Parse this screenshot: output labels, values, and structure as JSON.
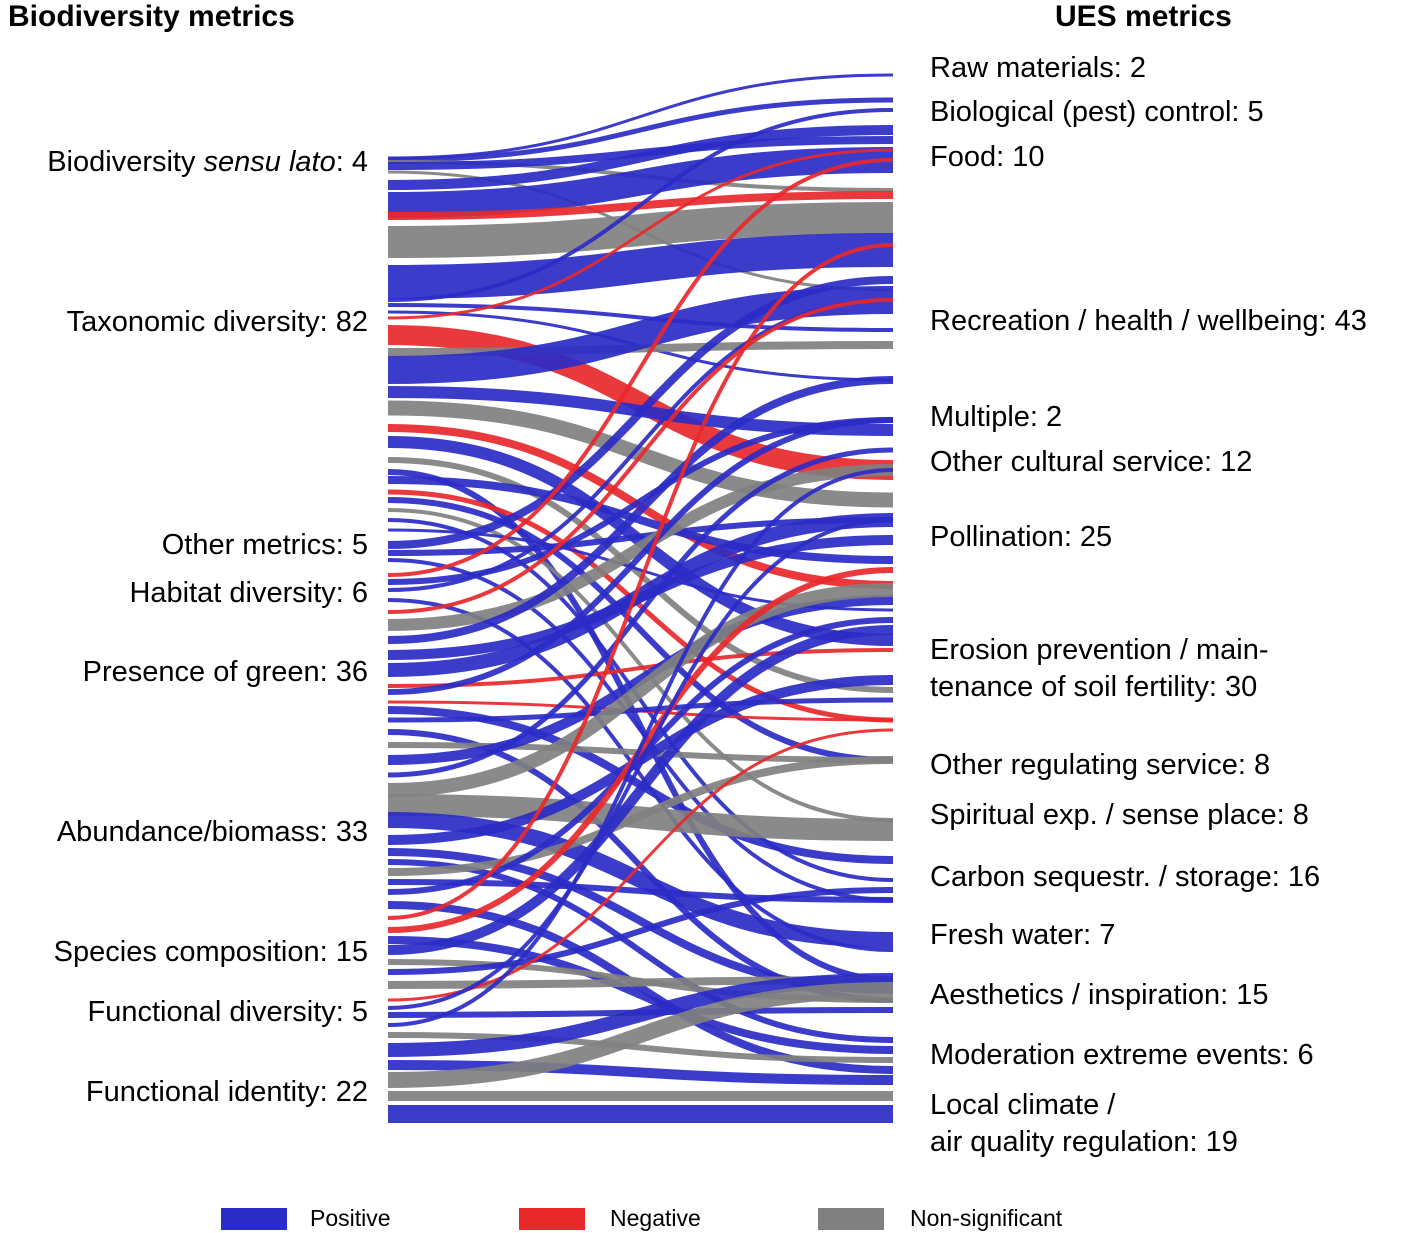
{
  "headers": {
    "left": "Biodiversity metrics",
    "right": "UES metrics"
  },
  "colors": {
    "positive": "#2b2bc7",
    "negative": "#e8282b",
    "non_significant": "#808080"
  },
  "left_labels": [
    {
      "pre": "Biodiversity ",
      "italic": "sensu lato",
      "post": ": 4"
    },
    {
      "pre": "Taxonomic diversity: 82",
      "italic": "",
      "post": ""
    },
    {
      "pre": "Other metrics: 5",
      "italic": "",
      "post": ""
    },
    {
      "pre": "Habitat diversity: 6",
      "italic": "",
      "post": ""
    },
    {
      "pre": "Presence of green: 36",
      "italic": "",
      "post": ""
    },
    {
      "pre": "Abundance/biomass: 33",
      "italic": "",
      "post": ""
    },
    {
      "pre": "Species composition: 15",
      "italic": "",
      "post": ""
    },
    {
      "pre": "Functional diversity: 5",
      "italic": "",
      "post": ""
    },
    {
      "pre": "Functional identity: 22",
      "italic": "",
      "post": ""
    }
  ],
  "right_labels": [
    {
      "line1": "Raw materials: 2",
      "line2": ""
    },
    {
      "line1": "Biological (pest) control: 5",
      "line2": ""
    },
    {
      "line1": "Food: 10",
      "line2": ""
    },
    {
      "line1": "Recreation / health / wellbeing: 43",
      "line2": ""
    },
    {
      "line1": "Multiple: 2",
      "line2": ""
    },
    {
      "line1": "Other cultural service: 12",
      "line2": ""
    },
    {
      "line1": "Pollination: 25",
      "line2": ""
    },
    {
      "line1": "Erosion prevention / main-",
      "line2": "tenance of soil fertility: 30"
    },
    {
      "line1": "Other regulating service: 8",
      "line2": ""
    },
    {
      "line1": "Spiritual exp. / sense place: 8",
      "line2": ""
    },
    {
      "line1": "Carbon sequestr. / storage: 16",
      "line2": ""
    },
    {
      "line1": "Fresh water: 7",
      "line2": ""
    },
    {
      "line1": "Aesthetics / inspiration: 15",
      "line2": ""
    },
    {
      "line1": "Moderation extreme events: 6",
      "line2": ""
    },
    {
      "line1": "Local climate /",
      "line2": "air quality regulation: 19"
    }
  ],
  "legend": {
    "positive": "Positive",
    "negative": "Negative",
    "non_significant": "Non-significant"
  }
}
